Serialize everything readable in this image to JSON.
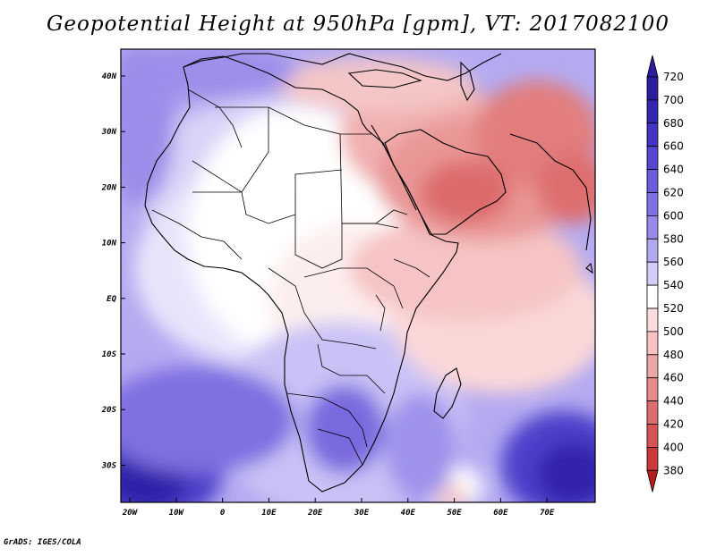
{
  "title": "Geopotential Height at 950hPa [gpm], VT: 2017082100",
  "credit": "GrADS: IGES/COLA",
  "lat_labels": [
    "40N",
    "30N",
    "20N",
    "10N",
    "EQ",
    "10S",
    "20S",
    "30S"
  ],
  "lon_labels": [
    "20W",
    "10W",
    "0",
    "10E",
    "20E",
    "30E",
    "40E",
    "50E",
    "60E",
    "70E"
  ],
  "colorbar": {
    "levels": [
      "720",
      "700",
      "680",
      "660",
      "640",
      "620",
      "600",
      "580",
      "560",
      "540",
      "520",
      "500",
      "480",
      "460",
      "440",
      "420",
      "400",
      "380"
    ],
    "colors": [
      "#2a1e9c",
      "#3326b0",
      "#4233c2",
      "#5446cf",
      "#6a5cda",
      "#8071e2",
      "#988ae9",
      "#b2a8f0",
      "#d2ccf7",
      "#ffffff",
      "#fbdcdc",
      "#f6c2c2",
      "#eca6a6",
      "#e68a8a",
      "#de6d6d",
      "#d55353",
      "#c83838",
      "#b41e1e"
    ],
    "top_color": "#2a1e9c",
    "bottom_color": "#b41e1e"
  },
  "colors": {
    "ocean_base": "#a99ff0",
    "land_base": "#ffffff",
    "border": "#000000"
  }
}
